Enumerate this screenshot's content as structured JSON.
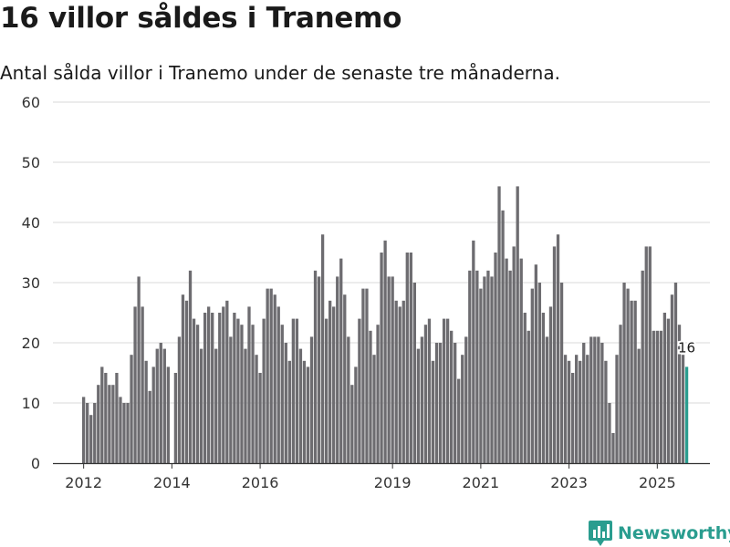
{
  "title": "16 villor såldes i Tranemo",
  "subtitle": "Antal sålda villor i Tranemo under de senaste tre månaderna.",
  "brand": "Newsworthy",
  "colors": {
    "bar": "#6d6c70",
    "highlight": "#2a9d8f",
    "grid": "#d9d9d9",
    "text": "#333333",
    "brand": "#2a9d8f"
  },
  "chart_data": {
    "type": "bar",
    "title": "16 villor såldes i Tranemo",
    "xlabel": "",
    "ylabel": "",
    "ylim": [
      0,
      60
    ],
    "yticks": [
      0,
      10,
      20,
      30,
      40,
      50,
      60
    ],
    "xticks": [
      {
        "label": "2012",
        "index": 0
      },
      {
        "label": "2014",
        "index": 24
      },
      {
        "label": "2016",
        "index": 48
      },
      {
        "label": "2019",
        "index": 84
      },
      {
        "label": "2021",
        "index": 108
      },
      {
        "label": "2023",
        "index": 132
      },
      {
        "label": "2025",
        "index": 156
      }
    ],
    "start_month": "2012-01",
    "values": [
      11,
      10,
      8,
      10,
      13,
      16,
      15,
      13,
      13,
      15,
      11,
      10,
      10,
      18,
      26,
      31,
      26,
      17,
      12,
      16,
      19,
      20,
      19,
      16,
      0,
      15,
      21,
      28,
      27,
      32,
      24,
      23,
      19,
      25,
      26,
      25,
      19,
      25,
      26,
      27,
      21,
      25,
      24,
      23,
      19,
      26,
      23,
      18,
      15,
      24,
      29,
      29,
      28,
      26,
      23,
      20,
      17,
      24,
      24,
      19,
      17,
      16,
      21,
      32,
      31,
      38,
      24,
      27,
      26,
      31,
      34,
      28,
      21,
      13,
      16,
      24,
      29,
      29,
      22,
      18,
      23,
      35,
      37,
      31,
      31,
      27,
      26,
      27,
      35,
      35,
      30,
      19,
      21,
      23,
      24,
      17,
      20,
      20,
      24,
      24,
      22,
      20,
      14,
      18,
      21,
      32,
      37,
      32,
      29,
      31,
      32,
      31,
      35,
      46,
      42,
      34,
      32,
      36,
      46,
      34,
      25,
      22,
      29,
      33,
      30,
      25,
      21,
      26,
      36,
      38,
      30,
      18,
      17,
      15,
      18,
      17,
      20,
      18,
      21,
      21,
      21,
      20,
      17,
      10,
      5,
      18,
      23,
      30,
      29,
      27,
      27,
      19,
      32,
      36,
      36,
      22,
      22,
      22,
      25,
      24,
      28,
      30,
      23,
      18,
      16
    ],
    "highlight_label": "16"
  }
}
